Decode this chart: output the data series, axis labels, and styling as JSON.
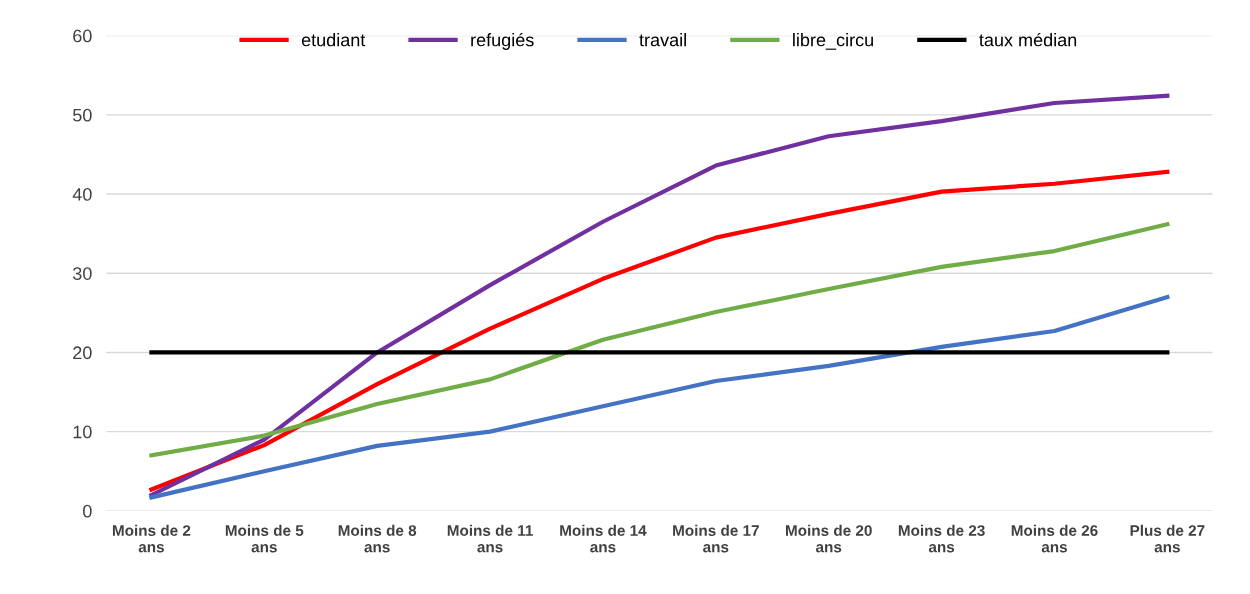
{
  "chart_data": {
    "type": "line",
    "categories": [
      "Moins de 2\nans",
      "Moins de 5\nans",
      "Moins de 8\nans",
      "Moins de 11\nans",
      "Moins de 14\nans",
      "Moins de 17\nans",
      "Moins de 20\nans",
      "Moins de 23\nans",
      "Moins de 26\nans",
      "Plus de 27\nans"
    ],
    "series": [
      {
        "name": "etudiant",
        "color": "#ff0000",
        "values": [
          2.7,
          8.3,
          16,
          23,
          29.3,
          34.5,
          37.5,
          40.3,
          41.3,
          42.8
        ]
      },
      {
        "name": "refugiés",
        "color": "#7030a0",
        "values": [
          2,
          9,
          20,
          28.5,
          36.5,
          43.6,
          47.3,
          49.2,
          51.5,
          52.4
        ]
      },
      {
        "name": "travail",
        "color": "#4472c4",
        "values": [
          1.7,
          5,
          8.2,
          10,
          13.2,
          16.4,
          18.3,
          20.7,
          22.7,
          27
        ]
      },
      {
        "name": "libre_circu",
        "color": "#70ad47",
        "values": [
          7,
          9.5,
          13.5,
          16.6,
          21.6,
          25.1,
          28,
          30.8,
          32.8,
          36.2
        ]
      },
      {
        "name": "taux médian",
        "color": "#000000",
        "values": [
          20,
          20,
          20,
          20,
          20,
          20,
          20,
          20,
          20,
          20
        ]
      }
    ],
    "ylim": [
      0,
      60
    ],
    "yticks": [
      0,
      10,
      20,
      30,
      40,
      50,
      60
    ],
    "grid": "y",
    "legend": "top",
    "marker": "none",
    "line_style": "solid"
  }
}
